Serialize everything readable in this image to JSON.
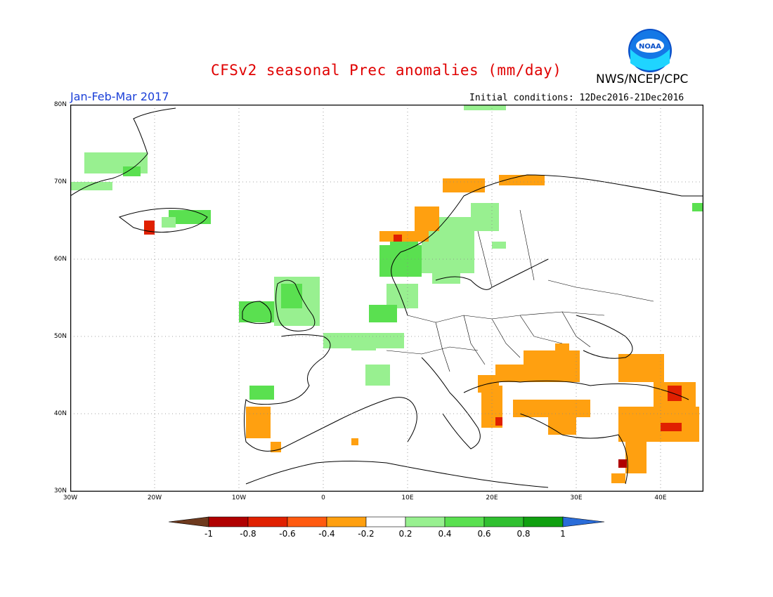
{
  "title": "CFSv2 seasonal Prec anomalies (mm/day)",
  "organization": "NWS/NCEP/CPC",
  "logo_text": "NOAA",
  "period": "Jan-Feb-Mar 2017",
  "initial_conditions": "Initial conditions: 12Dec2016-21Dec2016",
  "map": {
    "lat_labels": [
      "80N",
      "70N",
      "60N",
      "50N",
      "40N",
      "30N"
    ],
    "lon_labels": [
      "30W",
      "20W",
      "10W",
      "0",
      "10E",
      "20E",
      "30E",
      "40E"
    ]
  },
  "colorbar": {
    "labels": [
      "-1",
      "-0.8",
      "-0.6",
      "-0.4",
      "-0.2",
      "0.2",
      "0.4",
      "0.6",
      "0.8",
      "1"
    ],
    "colors": [
      "#6e3a1e",
      "#b00000",
      "#e02000",
      "#ff5a10",
      "#ffa010",
      "#ffffff",
      "#98f090",
      "#5ae050",
      "#30c030",
      "#10a010",
      "#2a6cd8"
    ]
  }
}
